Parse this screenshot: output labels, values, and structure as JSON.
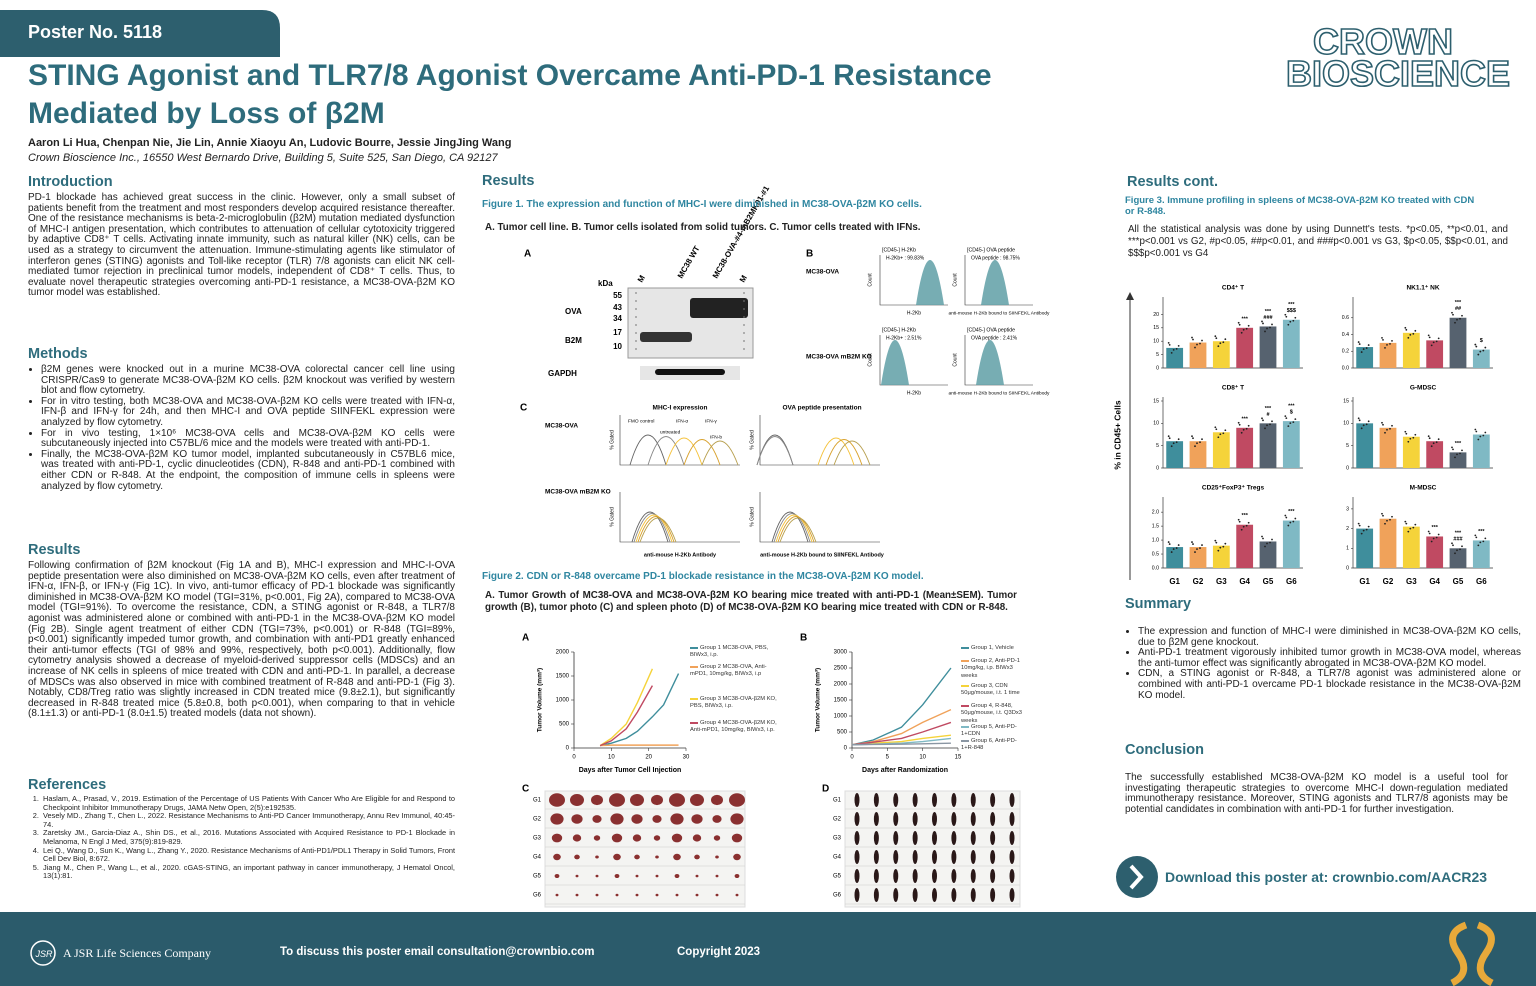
{
  "header": {
    "poster_no": "Poster No. 5118",
    "title_line1": "STING Agonist and TLR7/8 Agonist Overcame Anti-PD-1 Resistance",
    "title_line2": "Mediated by Loss of β2M",
    "authors": "Aaron Li Hua, Chenpan Nie, Jie Lin, Annie Xiaoyu An, Ludovic Bourre, Jessie JingJing Wang",
    "affiliation": "Crown Bioscience Inc., 16550 West Bernardo Drive, Building 5, Suite 525, San Diego, CA 92127",
    "logo_line1": "CROWN",
    "logo_line2": "BIOSCIENCE"
  },
  "introduction": {
    "heading": "Introduction",
    "text": "PD-1 blockade has achieved great success in the clinic. However, only a small subset of patients benefit from the treatment and most responders develop acquired resistance thereafter. One of the resistance mechanisms is beta-2-microglobulin (β2M) mutation mediated dysfunction of MHC-I antigen presentation, which contributes to attenuation of cellular cytotoxicity triggered by adaptive CD8⁺ T cells. Activating innate immunity, such as natural killer (NK) cells, can be used as a strategy to circumvent the attenuation. Immune-stimulating agents like stimulator of interferon genes (STING) agonists and Toll-like receptor (TLR) 7/8 agonists can elicit NK cell-mediated tumor rejection in preclinical tumor models, independent of CD8⁺ T cells. Thus, to evaluate novel therapeutic strategies overcoming anti-PD-1 resistance, a MC38-OVA-β2M KO tumor model was established."
  },
  "methods": {
    "heading": "Methods",
    "items": [
      "β2M genes were knocked out in a murine MC38-OVA colorectal cancer cell line using CRISPR/Cas9 to generate MC38-OVA-β2M KO cells. β2M knockout was verified by western blot and flow cytometry.",
      "For in vitro testing, both MC38-OVA and MC38-OVA-β2M KO cells were treated with IFN-α, IFN-β and IFN-γ for 24h, and then MHC-I and OVA peptide SIINFEKL expression were analyzed by flow cytometry.",
      "For in vivo testing, 1×10⁶ MC38-OVA cells and MC38-OVA-β2M KO cells were subcutaneously injected into C57BL/6 mice and the models were treated with anti-PD-1.",
      "Finally, the MC38-OVA-β2M KO tumor model, implanted subcutaneously in C57BL6 mice, was treated with anti-PD-1, cyclic dinucleotides (CDN), R-848 and anti-PD-1 combined with either CDN or R-848. At the endpoint, the composition of immune cells in spleens were analyzed by flow cytometry."
    ]
  },
  "results_text": {
    "heading": "Results",
    "text": "Following confirmation of β2M knockout (Fig 1A and B), MHC-I expression and MHC-I-OVA peptide presentation were also diminished on MC38-OVA-β2M KO cells, even after treatment of IFN-α, IFN-β, or IFN-γ (Fig 1C). In vivo, anti-tumor efficacy of PD-1 blockade was significantly diminished in MC38-OVA-β2M KO model (TGI=31%, p<0.001, Fig 2A), compared to MC38-OVA model (TGI=91%). To overcome the resistance, CDN, a STING agonist or R-848, a TLR7/8 agonist was administered alone or combined with anti-PD-1 in the MC38-OVA-β2M KO model (Fig 2B). Single agent treatment of either CDN (TGI=73%, p<0.001) or R-848 (TGI=89%, p<0.001) significantly impeded tumor growth, and combination with anti-PD1 greatly enhanced their anti-tumor effects (TGI of 98% and 99%, respectively, both p<0.001). Additionally, flow cytometry analysis showed a decrease of myeloid-derived suppressor cells (MDSCs) and an increase of NK cells in spleens of mice treated with CDN and anti-PD-1. In parallel, a decrease of MDSCs was also observed in mice with combined treatment of R-848 and anti-PD-1 (Fig 3). Notably, CD8/Treg ratio was slightly increased in CDN treated mice (9.8±2.1), but significantly decreased in R-848 treated mice (5.8±0.8, both p<0.001), when comparing to that in vehicle (8.1±1.3) or anti-PD-1 (8.0±1.5) treated models (data not shown)."
  },
  "references": {
    "heading": "References",
    "items": [
      "Haslam, A., Prasad, V., 2019. Estimation of the Percentage of US Patients With Cancer Who Are Eligible for and Respond to Checkpoint Inhibitor Immunotherapy Drugs, JAMA Netw Open, 2(5):e192535.",
      "Vesely MD., Zhang T., Chen L., 2022. Resistance Mechanisms to Anti-PD Cancer Immunotherapy, Annu Rev Immunol, 40:45-74.",
      "Zaretsky JM., Garcia-Diaz A., Shin DS., et al., 2016. Mutations Associated with Acquired Resistance to PD-1 Blockade in Melanoma, N Engl J Med, 375(9):819-829.",
      "Lei Q., Wang D., Sun K., Wang L., Zhang Y., 2020. Resistance Mechanisms of Anti-PD1/PDL1 Therapy in Solid Tumors, Front Cell Dev Biol, 8:672.",
      "Jiang M., Chen P., Wang L., et al., 2020. cGAS-STING, an important pathway in cancer immunotherapy, J Hematol Oncol, 13(1):81."
    ]
  },
  "results": {
    "heading": "Results"
  },
  "figure1": {
    "caption": "Figure 1. The expression and function of MHC-I were diminished in MC38-OVA-β2M KO cells.",
    "subtitle": "A. Tumor cell line. B. Tumor cells isolated from solid tumors. C. Tumor cells treated with IFNs.",
    "panel_a": {
      "label": "A",
      "lanes": [
        "M",
        "MC38 WT",
        "MC38-OVA-#4-mB2MK01-#1",
        "M"
      ],
      "unit": "kDa",
      "markers": [
        "55",
        "43",
        "34",
        "17",
        "10"
      ],
      "bands": [
        "OVA",
        "B2M",
        "GAPDH"
      ]
    },
    "panel_b": {
      "label": "B",
      "rows": [
        "MC38-OVA",
        "MC38-OVA mB2M KO"
      ],
      "gates": [
        "[CD45-] H-2Kb",
        "[CD45-] OVA peptide"
      ],
      "percents": [
        "H-2Kb+ : 99.83%",
        "OVA peptide : 98.75%",
        "H-2Kb+ : 2.51%",
        "OVA peptide : 2.41%"
      ],
      "xlabels": [
        "H-2Kb",
        "anti-mouse H-2Kb bound to SIINFEKL Antibody"
      ],
      "ylabel": "Count"
    },
    "panel_c": {
      "label": "C",
      "rows": [
        "MC38-OVA",
        "MC38-OVA mB2M KO"
      ],
      "titles": [
        "MHC-I expression",
        "OVA peptide presentation"
      ],
      "curves": [
        "FMO control",
        "untreated",
        "IFN-α",
        "IFN-γ",
        "IFN-b"
      ],
      "xlabels": [
        "anti-mouse H-2Kb Antibody",
        "anti-mouse H-2Kb bound to SIINFEKL Antibody"
      ],
      "ylabel": "% Gated"
    }
  },
  "figure2": {
    "caption": "Figure 2. CDN or R-848 overcame PD-1 blockade resistance in the MC38-OVA-β2M KO model.",
    "subtitle": "A. Tumor Growth of MC38-OVA and MC38-OVA-β2M KO bearing mice treated with anti-PD-1 (Mean±SEM). Tumor growth (B), tumor photo (C) and spleen photo (D) of MC38-OVA-β2M KO bearing mice treated with CDN or R-848.",
    "panel_a": {
      "type": "line",
      "label": "A",
      "xlabel": "Days after Tumor Cell Injection",
      "ylabel": "Tumor Volume (mm³)",
      "xlim": [
        0,
        30
      ],
      "xticks": [
        0,
        10,
        20,
        30
      ],
      "ylim": [
        0,
        2000
      ],
      "yticks": [
        0,
        500,
        1000,
        1500,
        2000
      ],
      "series": [
        {
          "name": "Group 1 MC38-OVA, PBS, BIWx3, i.p.",
          "color": "#3f8e9c",
          "x": [
            7,
            10,
            14,
            17,
            21,
            24,
            28
          ],
          "values": [
            50,
            100,
            200,
            350,
            650,
            900,
            1550
          ]
        },
        {
          "name": "Group 2 MC38-OVA, Anti-mPD1, 10mg/kg, BIWx3, i.p",
          "color": "#f0a25a",
          "x": [
            7,
            10,
            14,
            17,
            21,
            24,
            28
          ],
          "values": [
            50,
            60,
            60,
            60,
            60,
            60,
            60
          ]
        },
        {
          "name": "Group 3 MC38-OVA-β2M KO, PBS, BIWx3, i.p.",
          "color": "#f5d33a",
          "x": [
            7,
            10,
            14,
            17,
            21
          ],
          "values": [
            50,
            200,
            500,
            950,
            1650
          ]
        },
        {
          "name": "Group 4 MC38-OVA-β2M KO, Anti-mPD1, 10mg/kg, BIWx3, i.p.",
          "color": "#c04a62",
          "x": [
            7,
            10,
            14,
            17,
            21
          ],
          "values": [
            50,
            150,
            400,
            750,
            1300
          ]
        }
      ]
    },
    "panel_b": {
      "type": "line",
      "label": "B",
      "xlabel": "Days after Randomization",
      "ylabel": "Tumor Volume (mm³)",
      "xlim": [
        0,
        15
      ],
      "xticks": [
        0,
        5,
        10,
        15
      ],
      "ylim": [
        0,
        3000
      ],
      "yticks": [
        0,
        500,
        1000,
        1500,
        2000,
        2500,
        3000
      ],
      "series": [
        {
          "name": "Group 1, Vehicle",
          "color": "#3f8e9c",
          "x": [
            0,
            3,
            7,
            10,
            14
          ],
          "values": [
            100,
            250,
            650,
            1350,
            2500
          ]
        },
        {
          "name": "Group 2, Anti-PD-1 10mg/kg, i.p. BIWx3 weeks",
          "color": "#f0a25a",
          "x": [
            0,
            3,
            7,
            10,
            14
          ],
          "values": [
            100,
            200,
            450,
            800,
            1200
          ]
        },
        {
          "name": "Group 3, CDN 50μg/mouse, i.t. 1 time",
          "color": "#f5d33a",
          "x": [
            0,
            3,
            7,
            10,
            14
          ],
          "values": [
            100,
            150,
            200,
            300,
            400
          ]
        },
        {
          "name": "Group 4, R-848, 50μg/mouse, i.t. Q3Dx3 weeks",
          "color": "#c04a62",
          "x": [
            0,
            3,
            7,
            10,
            14
          ],
          "values": [
            100,
            180,
            300,
            500,
            800
          ]
        },
        {
          "name": "Group 5, Anti-PD-1+CDN",
          "color": "#7fb9c4",
          "x": [
            0,
            3,
            7,
            10,
            14
          ],
          "values": [
            100,
            120,
            150,
            200,
            300
          ]
        },
        {
          "name": "Group 6, Anti-PD-1+R-848",
          "color": "#8a96a3",
          "x": [
            0,
            3,
            7,
            10,
            14
          ],
          "values": [
            100,
            110,
            120,
            130,
            150
          ]
        }
      ]
    },
    "panel_c": {
      "label": "C",
      "rows": [
        "G1",
        "G2",
        "G3",
        "G4",
        "G5",
        "G6"
      ]
    },
    "panel_d": {
      "label": "D",
      "rows": [
        "G1",
        "G2",
        "G3",
        "G4",
        "G5",
        "G6"
      ]
    }
  },
  "results_cont": {
    "heading": "Results cont."
  },
  "figure3": {
    "type": "bar",
    "caption": "Figure 3. Immune profiling in spleens of MC38-OVA-β2M KO treated with CDN or R-848.",
    "note": "All the statistical analysis was done by using Dunnett's tests. *p<0.05, **p<0.01, and ***p<0.001 vs G2, #p<0.05, ##p<0.01, and ###p<0.001 vs G3, $p<0.05, $$p<0.01, and $$$p<0.001 vs G4",
    "ylabel": "% in CD45+ Cells",
    "categories": [
      "G1",
      "G2",
      "G3",
      "G4",
      "G5",
      "G6"
    ],
    "colors": [
      "#3f8e9c",
      "#f0a25a",
      "#f5d33a",
      "#c04a62",
      "#56626f",
      "#7fb9c4"
    ],
    "panels": [
      {
        "title": "CD4⁺ T",
        "ylim": [
          0,
          25
        ],
        "yticks": [
          0,
          5,
          10,
          15,
          20
        ],
        "values": [
          7.5,
          9.5,
          10,
          15,
          15.5,
          18
        ],
        "annotations": [
          null,
          null,
          null,
          [
            "***"
          ],
          [
            "***",
            "###"
          ],
          [
            "***",
            "$$$"
          ]
        ]
      },
      {
        "title": "NK1.1⁺ NK",
        "ylim": [
          0,
          0.8
        ],
        "yticks": [
          {
            "value": 0,
            "label": "0.0"
          },
          0.2,
          0.4,
          0.6
        ],
        "values": [
          0.25,
          0.3,
          0.42,
          0.33,
          0.6,
          0.22
        ],
        "annotations": [
          null,
          null,
          null,
          null,
          [
            "***",
            "##"
          ],
          [
            "$"
          ]
        ]
      },
      {
        "title": "CD8⁺ T",
        "ylim": [
          0,
          15
        ],
        "yticks": [
          0,
          5,
          10,
          15
        ],
        "values": [
          6,
          6,
          8,
          9,
          10,
          10.5
        ],
        "annotations": [
          null,
          null,
          null,
          [
            "***"
          ],
          [
            "***",
            "#"
          ],
          [
            "***",
            "$"
          ]
        ]
      },
      {
        "title": "G-MDSC",
        "ylim": [
          0,
          15
        ],
        "yticks": [
          0,
          5,
          10,
          15
        ],
        "values": [
          10,
          9,
          7,
          6,
          3.5,
          7.5
        ],
        "annotations": [
          null,
          null,
          null,
          null,
          [
            "***"
          ],
          null
        ]
      },
      {
        "title": "CD25⁺FoxP3⁺ Tregs",
        "ylim": [
          0,
          2.4
        ],
        "yticks": [
          {
            "value": 0,
            "label": "0.0"
          },
          0.5,
          {
            "value": 1,
            "label": "1.0"
          },
          1.5,
          {
            "value": 2,
            "label": "2.0"
          }
        ],
        "values": [
          0.75,
          0.75,
          0.8,
          1.55,
          0.95,
          1.7
        ],
        "annotations": [
          null,
          null,
          null,
          [
            "***"
          ],
          null,
          [
            "***"
          ]
        ]
      },
      {
        "title": "M-MDSC",
        "ylim": [
          0,
          3.4
        ],
        "yticks": [
          0,
          1,
          2,
          3
        ],
        "values": [
          2,
          2.5,
          2.1,
          1.6,
          1.0,
          1.4
        ],
        "annotations": [
          null,
          null,
          null,
          [
            "***"
          ],
          [
            "***",
            "###"
          ],
          [
            "***"
          ]
        ]
      }
    ]
  },
  "summary": {
    "heading": "Summary",
    "items": [
      "The expression and function of MHC-I were diminished in MC38-OVA-β2M KO cells, due to β2M gene knockout.",
      "Anti-PD-1 treatment vigorously inhibited tumor growth in MC38-OVA model, whereas the anti-tumor effect was significantly abrogated in MC38-OVA-β2M KO model.",
      "CDN, a STING agonist or R-848, a TLR7/8 agonist was administered alone or combined with anti-PD-1 overcame PD-1 blockade resistance in the MC38-OVA-β2M KO model."
    ]
  },
  "conclusion": {
    "heading": "Conclusion",
    "text": "The successfully established MC38-OVA-β2M KO model is a useful tool for investigating therapeutic strategies to overcome MHC-I down-regulation mediated immunotherapy resistance. Moreover, STING agonists and TLR7/8 agonists may be potential candidates in combination with anti-PD-1 for further investigation."
  },
  "download": "Download this poster at: crownbio.com/AACR23",
  "footer": {
    "company": "A JSR Life Sciences Company",
    "contact": "To discuss this poster email consultation@crownbio.com",
    "copyright": "Copyright 2023"
  }
}
